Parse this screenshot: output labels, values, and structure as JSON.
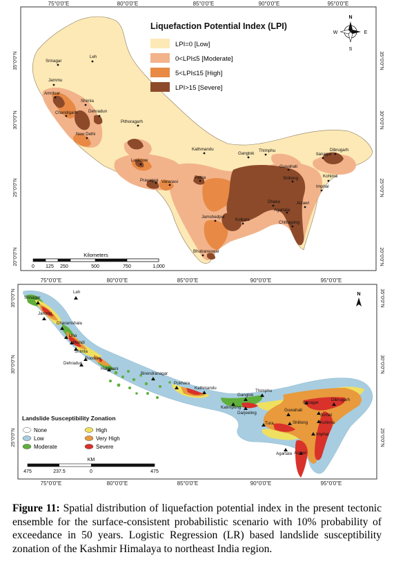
{
  "map1": {
    "title": "Liquefaction Potential Index (LPI)",
    "legend": [
      {
        "label": "LPI=0 [Low]",
        "color": "#fde9b6"
      },
      {
        "label": "0<LPI≤5 [Moderate]",
        "color": "#f2b38b"
      },
      {
        "label": "5<LPI≤15 [High]",
        "color": "#e88a45"
      },
      {
        "label": "LPI>15 [Severe]",
        "color": "#8c4a2a"
      }
    ],
    "lon_labels": [
      "75°0'0\"E",
      "80°0'0\"E",
      "85°0'0\"E",
      "90°0'0\"E",
      "95°0'0\"E"
    ],
    "lat_labels": [
      "35°0'0\"N",
      "30°0'0\"N",
      "25°0'0\"N",
      "20°0'0\"N"
    ],
    "cities": [
      "Srinagar",
      "Leh",
      "Jammu",
      "Amritsar",
      "Shimla",
      "Chandigarh",
      "Dehradun",
      "New Delhi",
      "Pithoragarh",
      "Lucknow",
      "Prayagraj",
      "Varanasi",
      "Kathmandu",
      "Patna",
      "Gangtok",
      "Thimphu",
      "Itanagar",
      "Dibrugarh",
      "Guwahati",
      "Shillong",
      "Kohima",
      "Imphal",
      "Dhaka",
      "Agartala",
      "Aizawl",
      "Jamshedpur",
      "Kolkata",
      "Chittagong",
      "Bhubaneswar"
    ],
    "scale_title": "Kilometers",
    "scale_ticks": [
      "0",
      "125",
      "250",
      "500",
      "750",
      "1,000"
    ],
    "compass": {
      "n": "N",
      "s": "S",
      "e": "E",
      "w": "W"
    }
  },
  "map2": {
    "legend_title": "Landslide Susceptibility Zonation",
    "legend": [
      {
        "label": "None",
        "color": "#ffffff"
      },
      {
        "label": "High",
        "color": "#f0e060"
      },
      {
        "label": "Low",
        "color": "#a8cde0"
      },
      {
        "label": "Very High",
        "color": "#e89a3c"
      },
      {
        "label": "Moderate",
        "color": "#5faf3c"
      },
      {
        "label": "Severe",
        "color": "#d8322a"
      }
    ],
    "lon_labels": [
      "75°0'0\"E",
      "80°0'0\"E",
      "85°0'0\"E",
      "90°0'0\"E",
      "95°0'0\"E"
    ],
    "lat_labels": [
      "35°0'0\"N",
      "30°0'0\"N",
      "25°0'0\"N"
    ],
    "cities": [
      "Srinagar",
      "Leh",
      "Jammu",
      "Dharamshala",
      "Una",
      "Mandi",
      "Shimla",
      "Roorkee",
      "Dehradun",
      "Haldwani",
      "Birendranagar",
      "Pokhara",
      "Kathmandu",
      "Gangtok",
      "Thimphu",
      "Kalimpong",
      "Darjeeling",
      "Itanagar",
      "Dibrugarh",
      "Guwahati",
      "Jorhat",
      "Tura",
      "Shillong",
      "Kohima",
      "Imphal",
      "Agartala",
      "Aizawl"
    ],
    "scale_title": "KM",
    "scale_ticks": [
      "475",
      "237.5",
      "0",
      "475"
    ],
    "north": "N"
  },
  "caption": {
    "label": "Figure 11:",
    "text": " Spatial distribution of liquefaction potential index in the present tectonic ensemble for the surface-consistent probabilistic scenario with 10% probability of exceedance in 50 years. Logistic Regression (LR) based landslide susceptibility zonation of the Kashmir Himalaya to northeast India region."
  }
}
